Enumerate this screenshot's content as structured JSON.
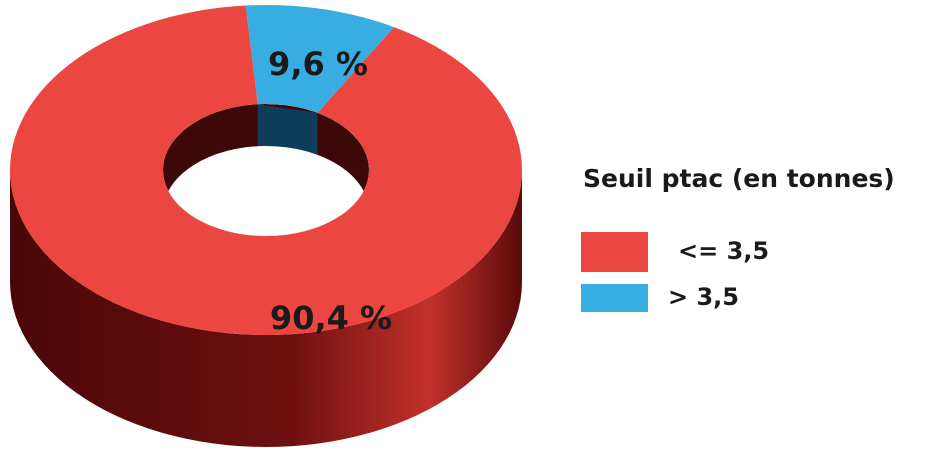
{
  "chart_data": {
    "type": "donut",
    "legend_title": "Seuil ptac (en tonnes)",
    "categories": [
      "<= 3,5",
      "> 3,5"
    ],
    "values": [
      90.4,
      9.6
    ],
    "value_labels": [
      "90,4 %",
      "9,6 %"
    ],
    "colors": [
      "#ec4640",
      "#38ade2"
    ]
  }
}
